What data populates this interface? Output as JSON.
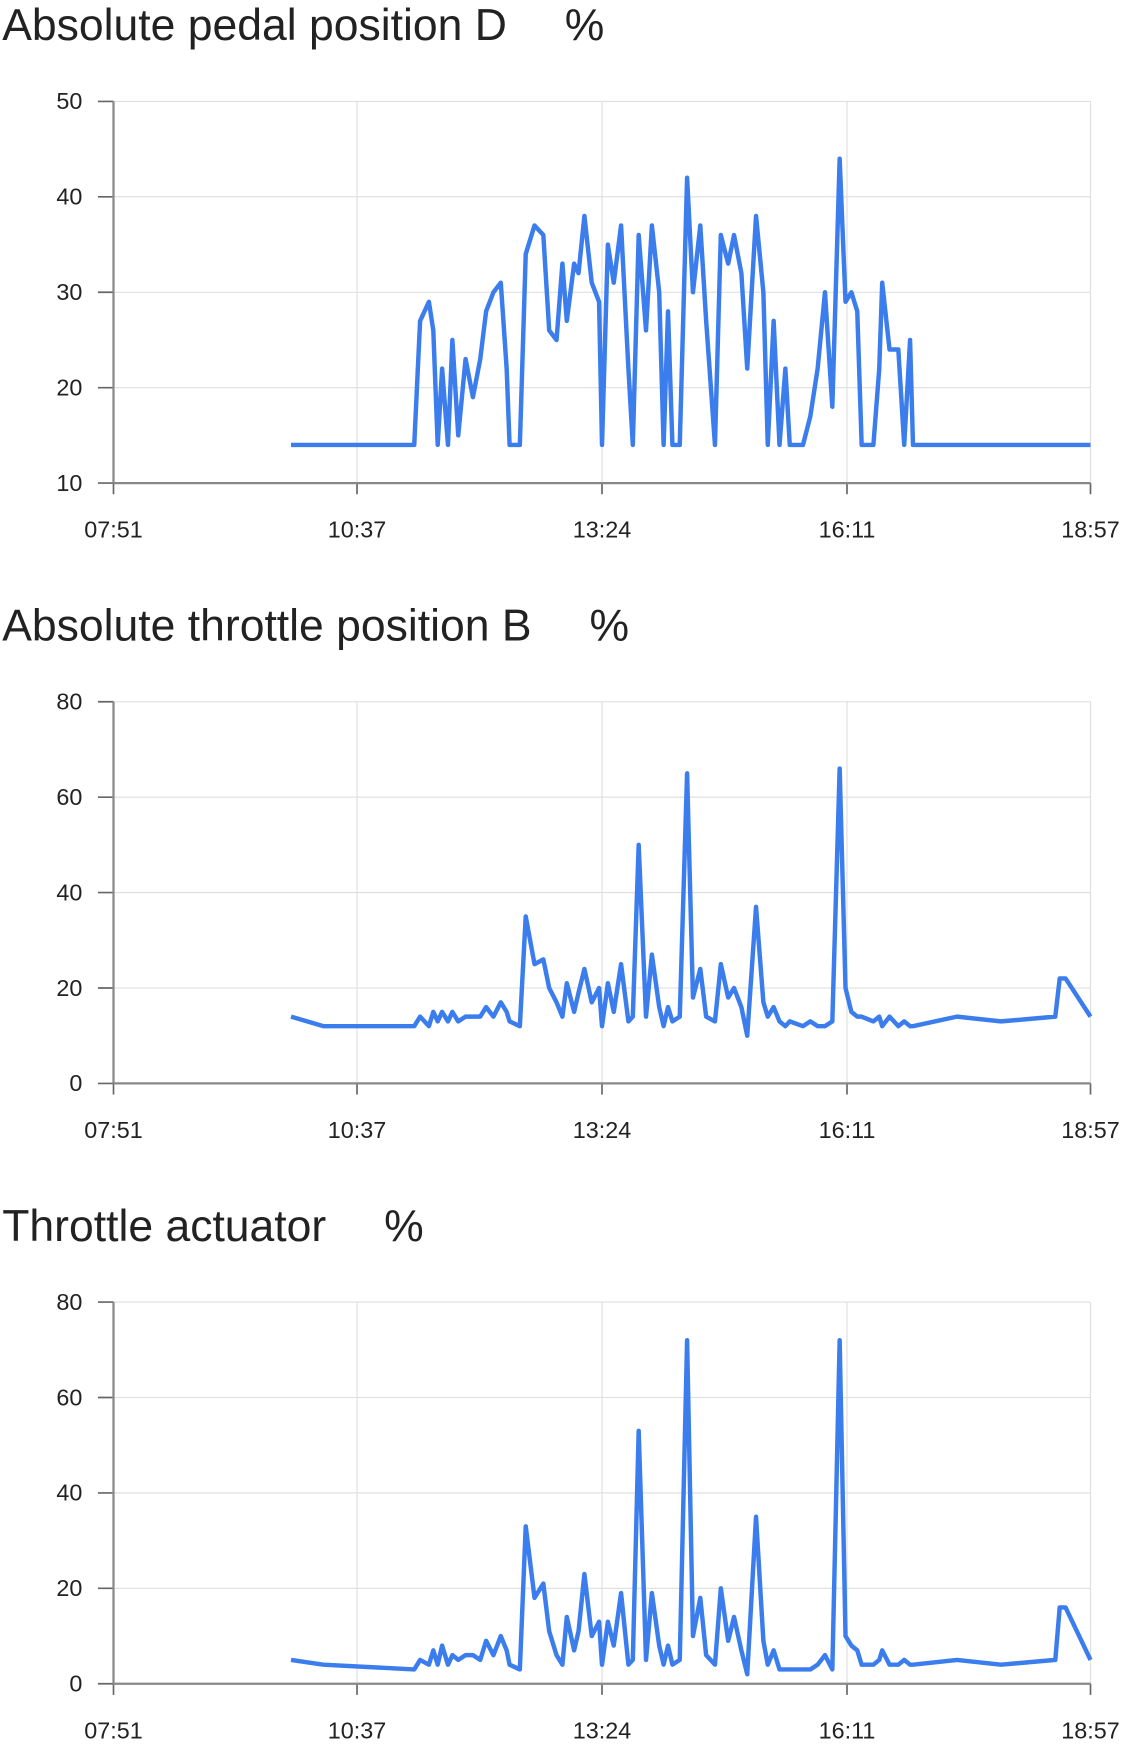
{
  "chart_data": [
    {
      "type": "line",
      "title": "Absolute pedal position D",
      "unit": "%",
      "x": [
        "09:52",
        "10:14",
        "11:16",
        "11:20",
        "11:26",
        "11:29",
        "11:32",
        "11:35",
        "11:39",
        "11:42",
        "11:46",
        "11:51",
        "11:56",
        "12:01",
        "12:05",
        "12:10",
        "12:15",
        "12:19",
        "12:21",
        "12:28",
        "12:32",
        "12:38",
        "12:44",
        "12:48",
        "12:53",
        "12:57",
        "13:00",
        "13:05",
        "13:08",
        "13:12",
        "13:17",
        "13:22",
        "13:24",
        "13:28",
        "13:32",
        "13:37",
        "13:42",
        "13:45",
        "13:49",
        "13:54",
        "13:58",
        "14:03",
        "14:06",
        "14:09",
        "14:12",
        "14:17",
        "14:22",
        "14:26",
        "14:31",
        "14:35",
        "14:41",
        "14:45",
        "14:50",
        "14:54",
        "14:59",
        "15:03",
        "15:09",
        "15:14",
        "15:17",
        "15:21",
        "15:25",
        "15:29",
        "15:32",
        "15:41",
        "15:46",
        "15:51",
        "15:56",
        "16:01",
        "16:06",
        "16:10",
        "16:14",
        "16:18",
        "16:21",
        "16:29",
        "16:33",
        "16:35",
        "16:40",
        "16:46",
        "16:50",
        "16:54",
        "16:56",
        "17:26",
        "17:56",
        "18:33",
        "18:36",
        "18:40",
        "18:57"
      ],
      "series": [
        {
          "name": "Absolute pedal position D",
          "color": "#3b7ded",
          "values": [
            14,
            14,
            14,
            27,
            29,
            26,
            14,
            22,
            14,
            25,
            15,
            23,
            19,
            23,
            28,
            30,
            31,
            22,
            14,
            14,
            34,
            37,
            36,
            26,
            25,
            33,
            27,
            33,
            32,
            38,
            31,
            29,
            14,
            35,
            31,
            37,
            22,
            14,
            36,
            26,
            37,
            30,
            14,
            28,
            14,
            14,
            42,
            30,
            37,
            27,
            14,
            36,
            33,
            36,
            32,
            22,
            38,
            30,
            14,
            27,
            14,
            22,
            14,
            14,
            17,
            22,
            30,
            18,
            44,
            29,
            30,
            28,
            14,
            14,
            22,
            31,
            24,
            24,
            14,
            25,
            14,
            14,
            14,
            14,
            14,
            14,
            14
          ]
        }
      ],
      "xlim": [
        "07:51",
        "18:57"
      ],
      "xticks": [
        "07:51",
        "10:37",
        "13:24",
        "16:11",
        "18:57"
      ],
      "ylim": [
        10,
        50
      ],
      "yticks": [
        10,
        20,
        30,
        40,
        50
      ],
      "grid": true
    },
    {
      "type": "line",
      "title": "Absolute throttle position B",
      "unit": "%",
      "x": [
        "09:52",
        "10:14",
        "11:16",
        "11:20",
        "11:26",
        "11:29",
        "11:32",
        "11:35",
        "11:39",
        "11:42",
        "11:46",
        "11:51",
        "11:56",
        "12:01",
        "12:05",
        "12:10",
        "12:15",
        "12:19",
        "12:21",
        "12:28",
        "12:32",
        "12:38",
        "12:44",
        "12:48",
        "12:53",
        "12:57",
        "13:00",
        "13:05",
        "13:08",
        "13:12",
        "13:17",
        "13:22",
        "13:24",
        "13:28",
        "13:32",
        "13:37",
        "13:42",
        "13:45",
        "13:49",
        "13:54",
        "13:58",
        "14:03",
        "14:06",
        "14:09",
        "14:12",
        "14:17",
        "14:22",
        "14:26",
        "14:31",
        "14:35",
        "14:41",
        "14:45",
        "14:50",
        "14:54",
        "14:59",
        "15:03",
        "15:09",
        "15:14",
        "15:17",
        "15:21",
        "15:25",
        "15:29",
        "15:32",
        "15:41",
        "15:46",
        "15:51",
        "15:56",
        "16:01",
        "16:06",
        "16:10",
        "16:14",
        "16:18",
        "16:21",
        "16:29",
        "16:33",
        "16:35",
        "16:40",
        "16:46",
        "16:50",
        "16:54",
        "16:56",
        "17:26",
        "17:56",
        "18:33",
        "18:36",
        "18:40",
        "18:57"
      ],
      "series": [
        {
          "name": "Absolute throttle position B",
          "color": "#3b7ded",
          "values": [
            14,
            12,
            12,
            14,
            12,
            15,
            13,
            15,
            13,
            15,
            13,
            14,
            14,
            14,
            16,
            14,
            17,
            15,
            13,
            12,
            35,
            25,
            26,
            20,
            17,
            14,
            21,
            15,
            19,
            24,
            17,
            20,
            12,
            21,
            15,
            25,
            13,
            14,
            50,
            14,
            27,
            16,
            12,
            16,
            13,
            14,
            65,
            18,
            24,
            14,
            13,
            25,
            18,
            20,
            16,
            10,
            37,
            17,
            14,
            16,
            13,
            12,
            13,
            12,
            13,
            12,
            12,
            13,
            66,
            20,
            15,
            14,
            14,
            13,
            14,
            12,
            14,
            12,
            13,
            12,
            12,
            14,
            13,
            14,
            22,
            22,
            14
          ]
        }
      ],
      "xlim": [
        "07:51",
        "18:57"
      ],
      "xticks": [
        "07:51",
        "10:37",
        "13:24",
        "16:11",
        "18:57"
      ],
      "ylim": [
        0,
        80
      ],
      "yticks": [
        0,
        20,
        40,
        60,
        80
      ],
      "grid": true
    },
    {
      "type": "line",
      "title": "Throttle actuator",
      "unit": "%",
      "x": [
        "09:52",
        "10:14",
        "11:16",
        "11:20",
        "11:26",
        "11:29",
        "11:32",
        "11:35",
        "11:39",
        "11:42",
        "11:46",
        "11:51",
        "11:56",
        "12:01",
        "12:05",
        "12:10",
        "12:15",
        "12:19",
        "12:21",
        "12:28",
        "12:32",
        "12:38",
        "12:44",
        "12:48",
        "12:53",
        "12:57",
        "13:00",
        "13:05",
        "13:08",
        "13:12",
        "13:17",
        "13:22",
        "13:24",
        "13:28",
        "13:32",
        "13:37",
        "13:42",
        "13:45",
        "13:49",
        "13:54",
        "13:58",
        "14:03",
        "14:06",
        "14:09",
        "14:12",
        "14:17",
        "14:22",
        "14:26",
        "14:31",
        "14:35",
        "14:41",
        "14:45",
        "14:50",
        "14:54",
        "14:59",
        "15:03",
        "15:09",
        "15:14",
        "15:17",
        "15:21",
        "15:25",
        "15:29",
        "15:32",
        "15:41",
        "15:46",
        "15:51",
        "15:56",
        "16:01",
        "16:06",
        "16:10",
        "16:14",
        "16:18",
        "16:21",
        "16:29",
        "16:33",
        "16:35",
        "16:40",
        "16:46",
        "16:50",
        "16:54",
        "16:56",
        "17:26",
        "17:56",
        "18:33",
        "18:36",
        "18:40",
        "18:57"
      ],
      "series": [
        {
          "name": "Throttle actuator",
          "color": "#3b7ded",
          "values": [
            5,
            4,
            3,
            5,
            4,
            7,
            4,
            8,
            4,
            6,
            5,
            6,
            6,
            5,
            9,
            6,
            10,
            7,
            4,
            3,
            33,
            18,
            21,
            11,
            6,
            4,
            14,
            7,
            11,
            23,
            10,
            13,
            4,
            13,
            8,
            19,
            4,
            5,
            53,
            5,
            19,
            8,
            4,
            8,
            4,
            5,
            72,
            10,
            18,
            6,
            4,
            20,
            9,
            14,
            7,
            2,
            35,
            9,
            4,
            7,
            3,
            3,
            3,
            3,
            3,
            4,
            6,
            3,
            72,
            10,
            8,
            7,
            4,
            4,
            5,
            7,
            4,
            4,
            5,
            4,
            4,
            5,
            4,
            5,
            16,
            16,
            5
          ]
        }
      ],
      "xlim": [
        "07:51",
        "18:57"
      ],
      "xticks": [
        "07:51",
        "10:37",
        "13:24",
        "16:11",
        "18:57"
      ],
      "ylim": [
        0,
        80
      ],
      "yticks": [
        0,
        20,
        40,
        60,
        80
      ],
      "grid": true
    }
  ]
}
